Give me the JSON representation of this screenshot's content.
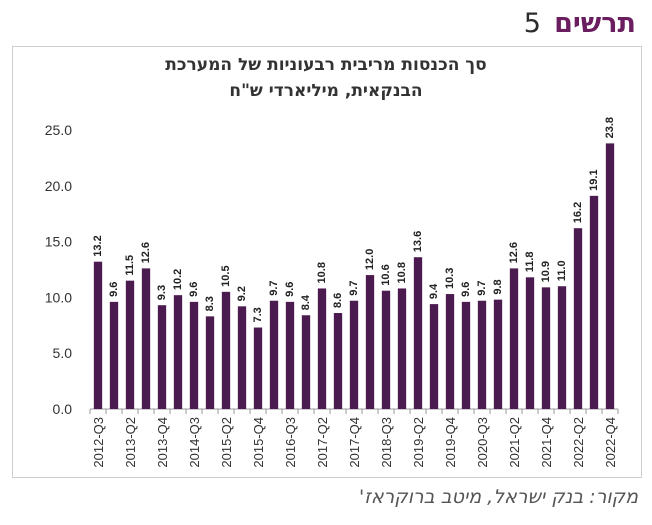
{
  "header": {
    "label": "תרשים",
    "number": "5"
  },
  "source": "מקור: בנק ישראל, מיטב ברוקראז'",
  "colors": {
    "bar": "#4b1a4f",
    "axis": "#999999",
    "title": "#333333",
    "header_label": "#6a1d5f"
  },
  "chart_data": {
    "type": "bar",
    "title_line1": "סך הכנסות מריבית רבעוניות של המערכת",
    "title_line2": "הבנקאית, מיליארדי ש\"ח",
    "ylim": [
      0,
      25
    ],
    "yticks": [
      "0.0",
      "5.0",
      "10.0",
      "15.0",
      "20.0",
      "25.0"
    ],
    "grid": false,
    "x_tick_labels": [
      "2012-Q3",
      "2013-Q2",
      "2013-Q4",
      "2014-Q3",
      "2015-Q2",
      "2015-Q4",
      "2016-Q3",
      "2017-Q2",
      "2017-Q4",
      "2018-Q3",
      "2019-Q2",
      "2019-Q4",
      "2020-Q3",
      "2021-Q2",
      "2021-Q4",
      "2022-Q2",
      "2022-Q4"
    ],
    "values": [
      13.2,
      9.6,
      11.5,
      12.6,
      9.3,
      10.2,
      9.6,
      8.3,
      10.5,
      9.2,
      7.3,
      9.7,
      9.6,
      8.4,
      10.8,
      8.6,
      9.7,
      12.0,
      10.6,
      10.8,
      13.6,
      9.4,
      10.3,
      9.6,
      9.7,
      9.8,
      12.6,
      11.8,
      10.9,
      11.0,
      16.2,
      19.1,
      23.8
    ],
    "value_labels": [
      "13.2",
      "9.6",
      "11.5",
      "12.6",
      "9.3",
      "10.2",
      "9.6",
      "8.3",
      "10.5",
      "9.2",
      "7.3",
      "9.7",
      "9.6",
      "8.4",
      "10.8",
      "8.6",
      "9.7",
      "12.0",
      "10.6",
      "10.8",
      "13.6",
      "9.4",
      "10.3",
      "9.6",
      "9.7",
      "9.8",
      "12.6",
      "11.8",
      "10.9",
      "11.0",
      "16.2",
      "19.1",
      "23.8"
    ]
  }
}
